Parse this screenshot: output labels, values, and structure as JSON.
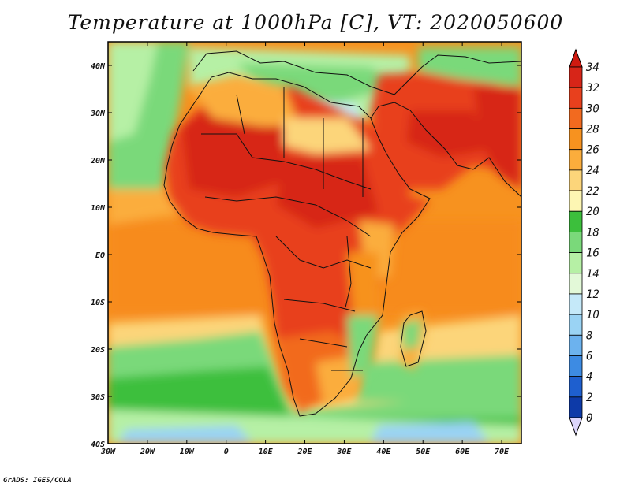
{
  "title": "Temperature at 1000hPa [C], VT: 2020050600",
  "credit": "GrADS: IGES/COLA",
  "lon_ticks": [
    "30W",
    "20W",
    "10W",
    "0",
    "10E",
    "20E",
    "30E",
    "40E",
    "50E",
    "60E",
    "70E"
  ],
  "lat_ticks": [
    "40N",
    "30N",
    "20N",
    "10N",
    "EQ",
    "10S",
    "20S",
    "30S",
    "40S"
  ],
  "colorbar": {
    "labels": [
      "34",
      "32",
      "30",
      "28",
      "26",
      "24",
      "22",
      "20",
      "18",
      "16",
      "14",
      "12",
      "10",
      "8",
      "6",
      "4",
      "2",
      "0"
    ],
    "colors_top_to_bottom": [
      "#d72518",
      "#e8401d",
      "#f26a1f",
      "#f7921f",
      "#fbad3c",
      "#fcd57a",
      "#fdf6b3",
      "#3cbf3c",
      "#7ad97a",
      "#b6f0a5",
      "#e3f9d8",
      "#c5e9f9",
      "#9ad3f4",
      "#6cb2ee",
      "#3d8be3",
      "#1e5fcf",
      "#0d3aa8",
      "#07177a"
    ],
    "under_color": "#dcd6fb",
    "over_color": "#cf1a10",
    "units": "C"
  },
  "map": {
    "lon_range": [
      -30,
      75
    ],
    "lat_range": [
      -40,
      45
    ],
    "field": "Temperature at 1000hPa",
    "valid_time": "2020050600",
    "ocean_color": "#f9a63a",
    "land_hot_color": "#e8401d"
  }
}
